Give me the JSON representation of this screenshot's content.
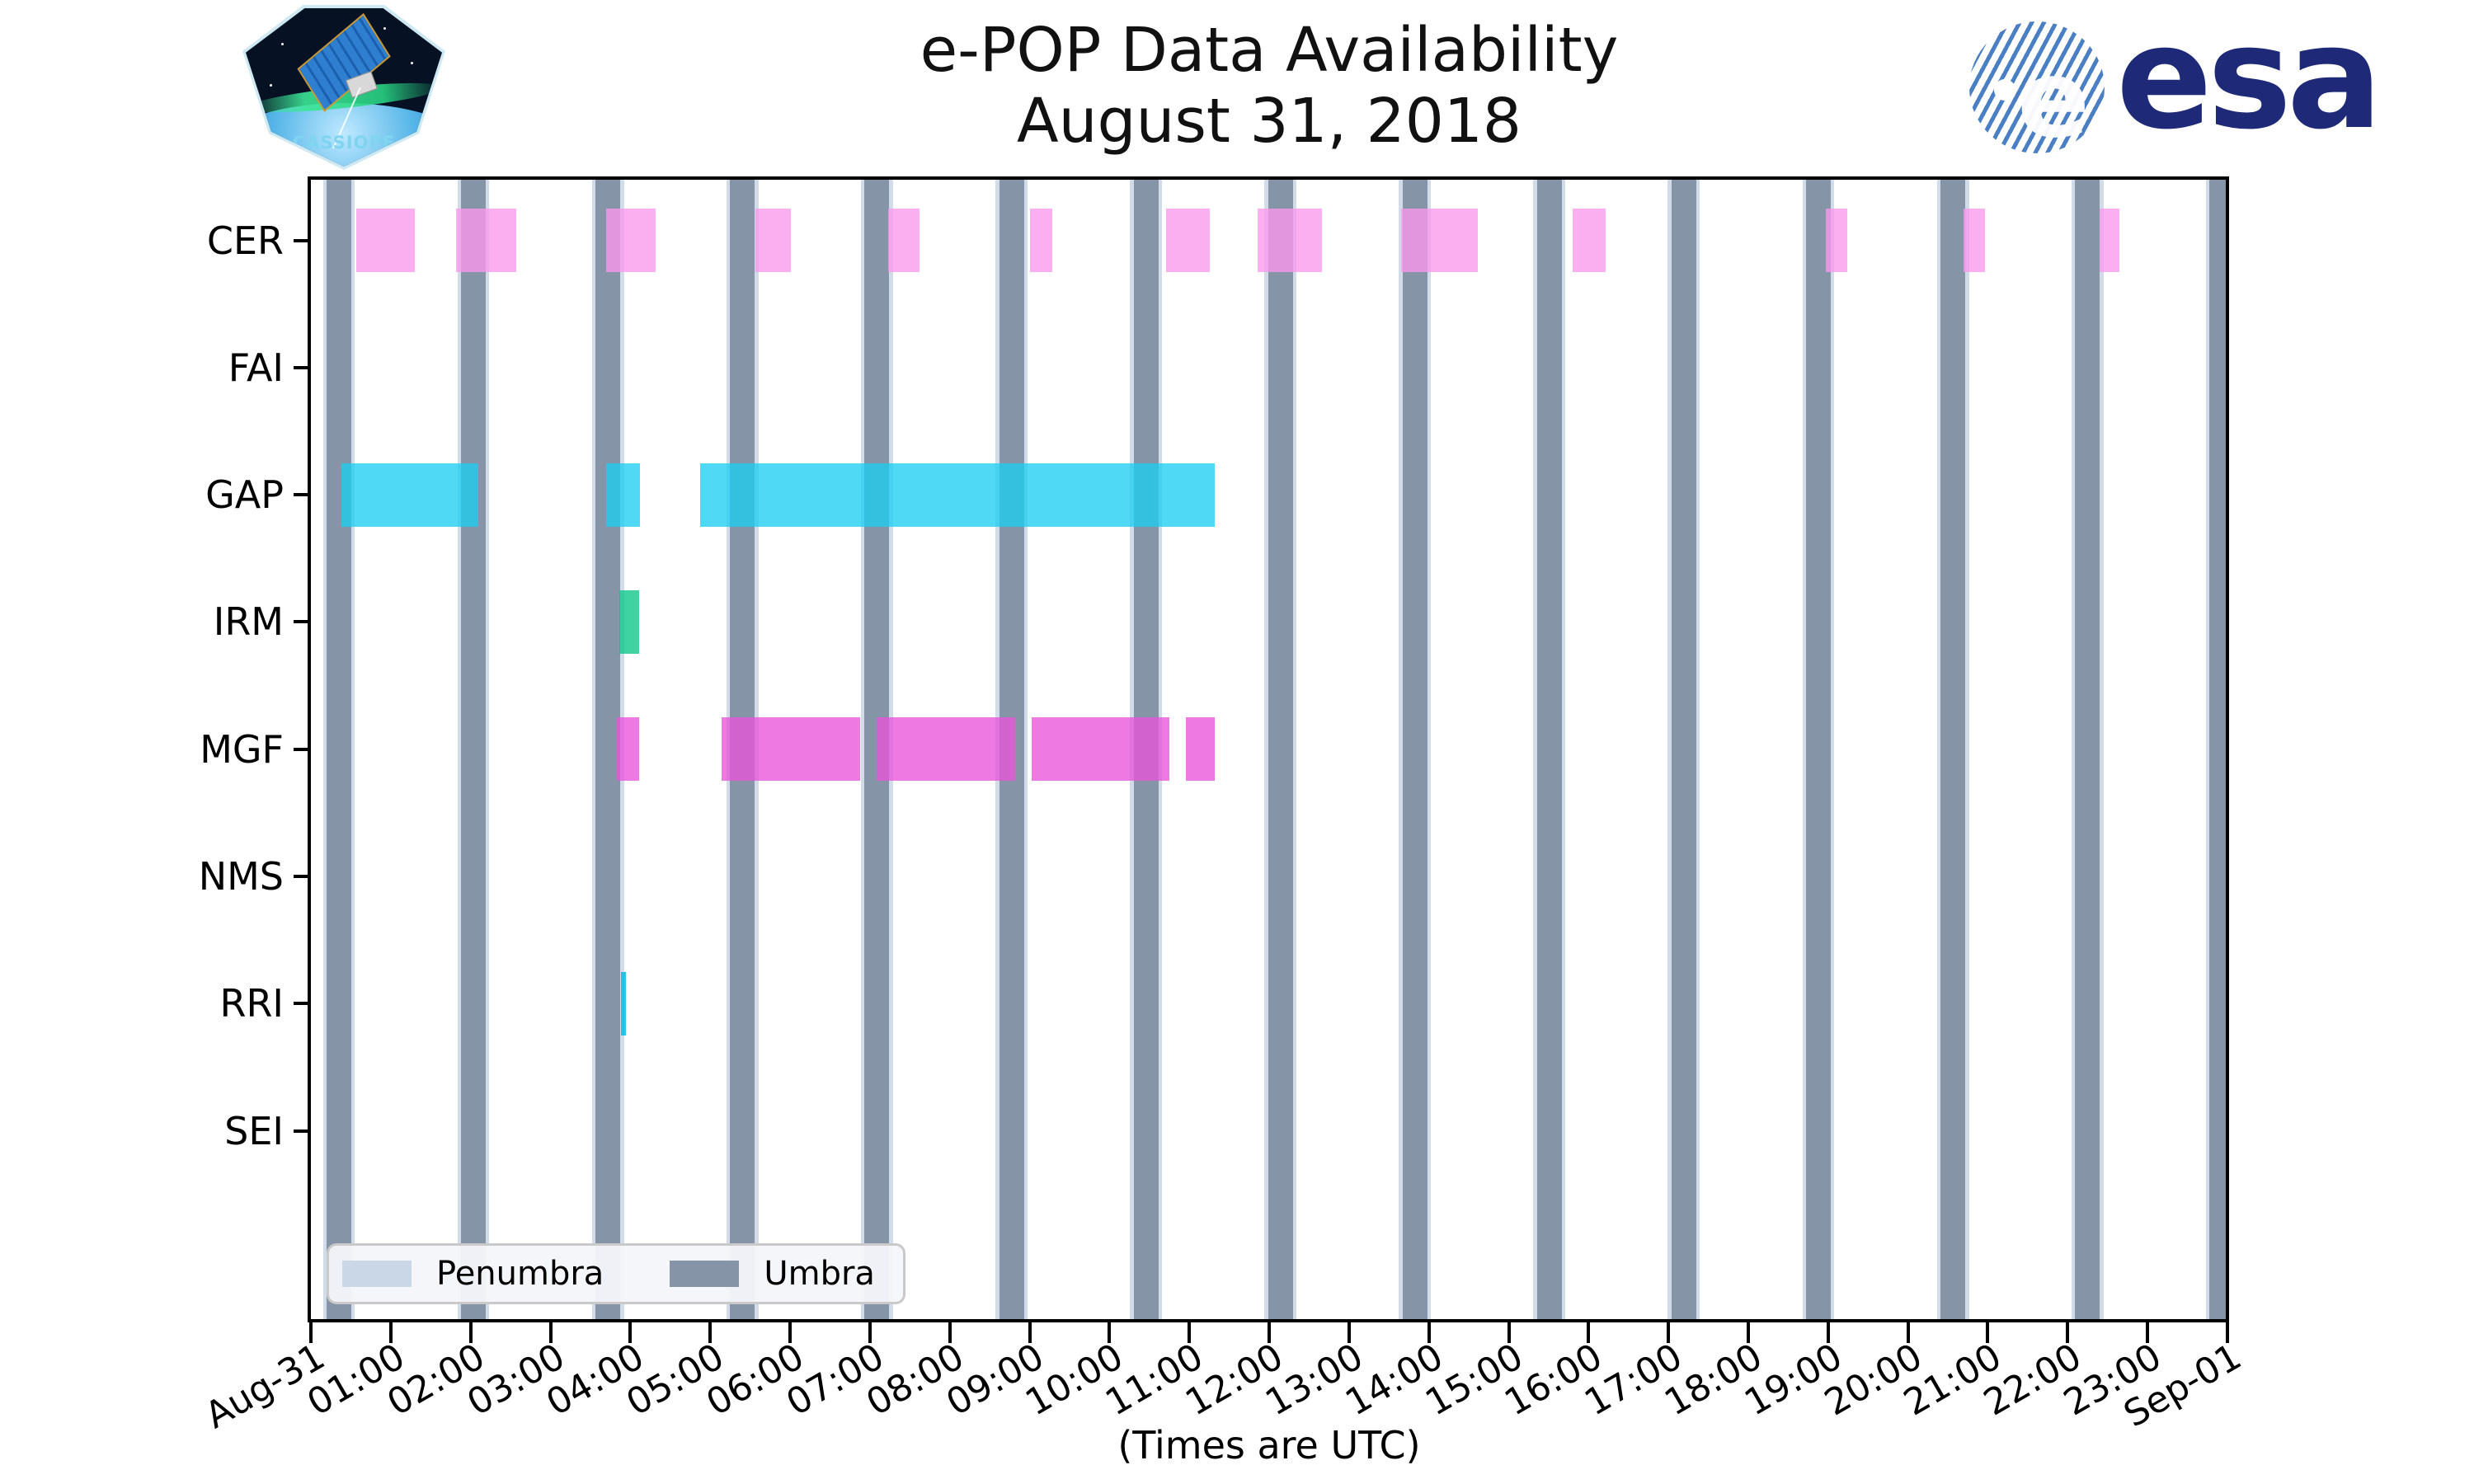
{
  "title": {
    "line1": "e-POP Data Availability",
    "line2": "August 31, 2018"
  },
  "xaxis_title": "(Times are UTC)",
  "logos": {
    "cassiope_label": "CASSIOPE",
    "esa_label": "esa"
  },
  "legend": {
    "penumbra_label": "Penumbra",
    "umbra_label": "Umbra"
  },
  "colors": {
    "umbra": "#8594A6",
    "penumbra": "#D2DCE9",
    "legend_penumbra_swatch": "#C9D7E7",
    "legend_umbra_swatch": "#8594A6",
    "spine": "#000000",
    "esa_navy": "#1E2A78",
    "cer": "rgba(250,153,236,0.78)",
    "gap": "rgba(29,206,241,0.78)",
    "irm": "rgba(9,199,136,0.78)",
    "mgf": "rgba(231,85,218,0.78)",
    "rri": "rgba(6,188,226,0.85)"
  },
  "chart_data": {
    "type": "timeline-bar (broken_barh availability chart)",
    "title": "e-POP Data Availability August 31, 2018",
    "x_axis": {
      "range_hours": [
        0,
        24
      ],
      "tick_labels": [
        "Aug-31",
        "01:00",
        "02:00",
        "03:00",
        "04:00",
        "05:00",
        "06:00",
        "07:00",
        "08:00",
        "09:00",
        "10:00",
        "11:00",
        "12:00",
        "13:00",
        "14:00",
        "15:00",
        "16:00",
        "17:00",
        "18:00",
        "19:00",
        "20:00",
        "21:00",
        "22:00",
        "23:00",
        "Sep-01"
      ],
      "note": "(Times are UTC)"
    },
    "instruments": [
      "CER",
      "FAI",
      "GAP",
      "IRM",
      "MGF",
      "NMS",
      "RRI",
      "SEI"
    ],
    "availability_hours": {
      "CER": [
        [
          0.568,
          1.301
        ],
        [
          1.818,
          2.571
        ],
        [
          3.697,
          4.317
        ],
        [
          5.566,
          6.011
        ],
        [
          7.229,
          7.621
        ],
        [
          9.005,
          9.284
        ],
        [
          10.709,
          11.256
        ],
        [
          11.855,
          12.661
        ],
        [
          13.652,
          14.612
        ],
        [
          15.8,
          16.213
        ],
        [
          18.97,
          19.239
        ],
        [
          20.695,
          20.963
        ],
        [
          22.399,
          22.647
        ]
      ],
      "FAI": [],
      "GAP": [
        [
          0.382,
          2.096
        ],
        [
          3.697,
          4.121
        ],
        [
          4.874,
          11.319
        ]
      ],
      "IRM": [
        [
          3.862,
          4.11
        ]
      ],
      "MGF": [
        [
          3.831,
          4.11
        ],
        [
          5.143,
          6.878
        ],
        [
          7.084,
          8.819
        ],
        [
          9.026,
          10.751
        ],
        [
          10.957,
          11.319
        ]
      ],
      "NMS": [],
      "RRI": [
        [
          3.883,
          3.945
        ]
      ],
      "SEI": []
    },
    "series_colors": {
      "CER": "cer",
      "GAP": "gap",
      "IRM": "irm",
      "MGF": "mgf",
      "RRI": "rri"
    },
    "shadow": {
      "umbra_centers_hours": [
        0.351,
        2.035,
        3.72,
        5.404,
        7.088,
        8.773,
        10.457,
        12.141,
        13.826,
        15.51,
        17.194,
        18.879,
        20.563,
        22.247,
        23.932
      ],
      "umbra_width_hours": 0.31,
      "penumbra_extra_hours": 0.046,
      "orbital_period_hours": 1.6844
    },
    "legend": [
      "Penumbra",
      "Umbra"
    ],
    "layout_hints": {
      "grid": "off",
      "legend_position": "lower left",
      "bar_rows_top_to_bottom": "CER first"
    }
  }
}
